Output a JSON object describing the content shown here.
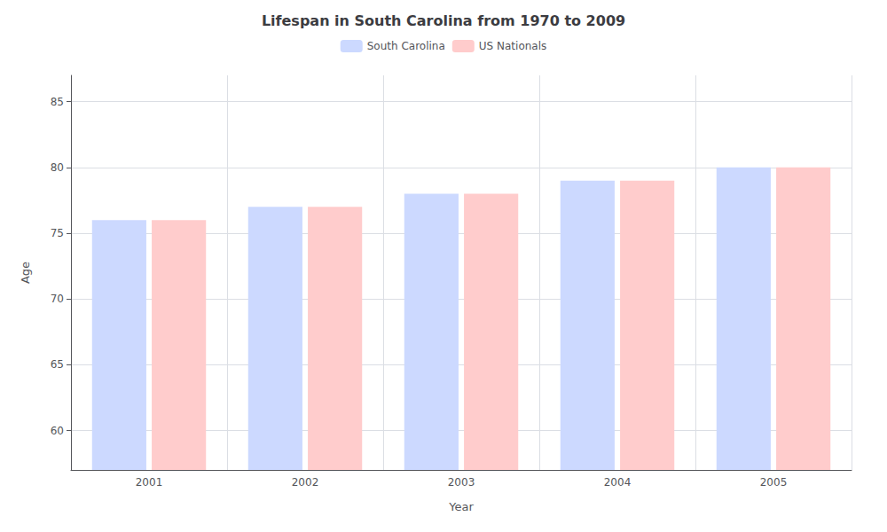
{
  "chart_data": {
    "type": "bar",
    "title": "Lifespan in South Carolina from 1970 to 2009",
    "x_label": "Year",
    "y_label": "Age",
    "categories": [
      "2001",
      "2002",
      "2003",
      "2004",
      "2005"
    ],
    "series": [
      {
        "name": "South Carolina",
        "color": "#ccd9ff",
        "values": [
          76,
          77,
          78,
          79,
          80
        ]
      },
      {
        "name": "US Nationals",
        "color": "#ffcccc",
        "values": [
          76,
          77,
          78,
          79,
          80
        ]
      }
    ],
    "ylim": [
      57,
      87
    ],
    "yticks": [
      60,
      65,
      70,
      75,
      80,
      85
    ],
    "grid": true,
    "legend": "top"
  }
}
